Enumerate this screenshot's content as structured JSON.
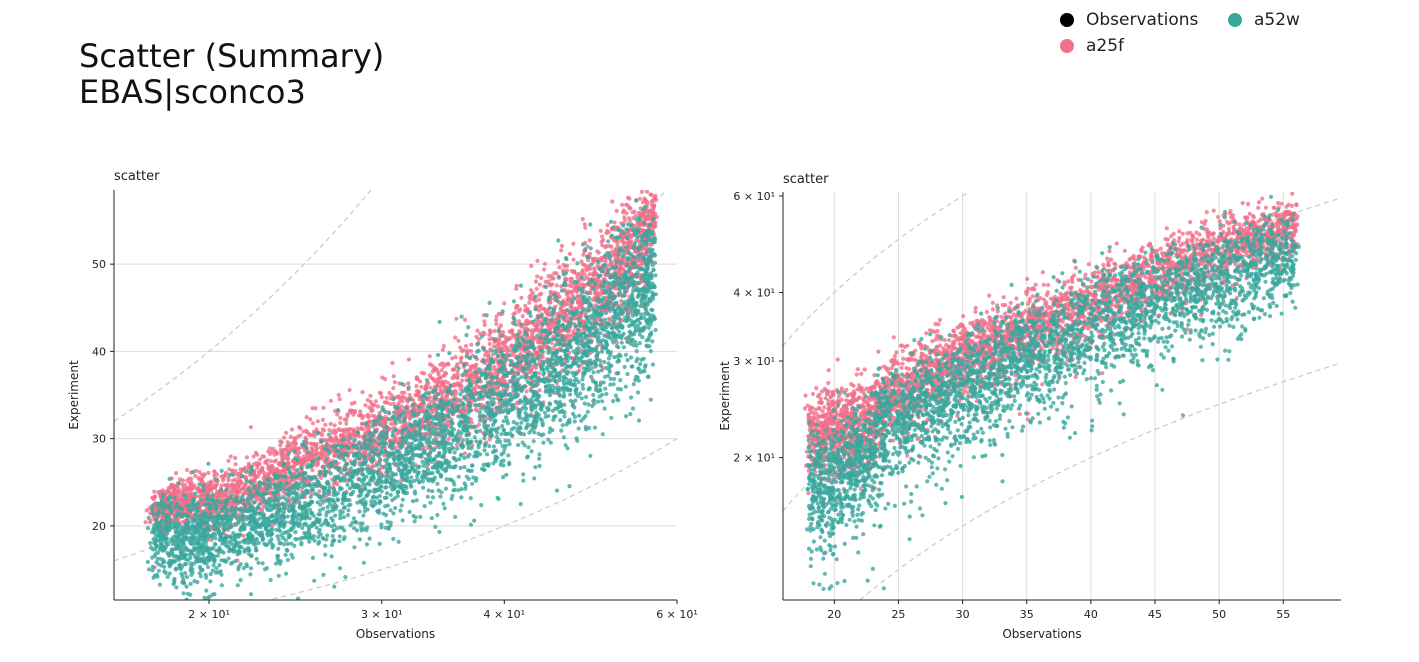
{
  "header": {
    "title_line1": "Scatter (Summary)",
    "title_line2": "EBAS|sconco3"
  },
  "legend": {
    "items": [
      {
        "label": "Observations",
        "color": "#000000"
      },
      {
        "label": "a52w",
        "color": "#3aa79e"
      },
      {
        "label": "a25f",
        "color": "#f0718a"
      }
    ]
  },
  "chart_data": [
    {
      "type": "scatter",
      "title": "scatter",
      "xlabel": "Observations",
      "ylabel": "Experiment",
      "xscale": "log",
      "yscale": "linear",
      "xlim": [
        16,
        60
      ],
      "ylim": [
        11.5,
        58.5
      ],
      "xticks": [
        {
          "value": 20,
          "label": "2 × 10¹"
        },
        {
          "value": 30,
          "label": "3 × 10¹"
        },
        {
          "value": 40,
          "label": "4 × 10¹"
        },
        {
          "value": 60,
          "label": "6 × 10¹"
        }
      ],
      "yticks": [
        {
          "value": 20,
          "label": "20"
        },
        {
          "value": 30,
          "label": "30"
        },
        {
          "value": 40,
          "label": "40"
        },
        {
          "value": 50,
          "label": "50"
        }
      ],
      "grid": "horizontal",
      "reference_lines": [
        "1:2",
        "1:1",
        "2:1"
      ],
      "series": [
        {
          "name": "a25f",
          "color": "#f0718a",
          "x": [
            17.5,
            18.5,
            19.5,
            20.5,
            22,
            23.5,
            25,
            27,
            29,
            31,
            33,
            35,
            37.5,
            40,
            42.5,
            45,
            47.5,
            50,
            52.5,
            55,
            57
          ],
          "y": [
            21.5,
            22.5,
            22.8,
            22.5,
            24,
            26,
            27.5,
            29,
            30,
            31.5,
            33,
            34.5,
            36.5,
            38.5,
            41,
            43,
            45,
            47,
            49.5,
            52,
            55
          ],
          "spread": [
            1.5,
            1.5,
            1.5,
            1.8,
            2,
            2,
            2,
            2.3,
            2.5,
            2.5,
            2.5,
            2.8,
            3,
            3,
            3,
            3,
            3.2,
            3.5,
            3.5,
            3,
            2
          ]
        },
        {
          "name": "a52w",
          "color": "#3aa79e",
          "x": [
            17.5,
            18.5,
            19.5,
            20.5,
            22,
            23.5,
            25,
            27,
            29,
            31,
            33,
            35,
            37.5,
            40,
            42.5,
            45,
            47.5,
            50,
            52.5,
            55,
            57
          ],
          "y": [
            19,
            18.5,
            18.5,
            19,
            20,
            21.5,
            22.5,
            24,
            25.5,
            27,
            28.5,
            30,
            32,
            34,
            36,
            38,
            40,
            42.5,
            44.5,
            46.5,
            48
          ],
          "spread": [
            2.5,
            2.5,
            2.5,
            2.5,
            2.8,
            3,
            3,
            3.2,
            3.5,
            3.5,
            3.5,
            3.8,
            4,
            4,
            4.2,
            4.5,
            4.5,
            4.8,
            5,
            5,
            4
          ]
        }
      ]
    },
    {
      "type": "scatter",
      "title": "scatter",
      "xlabel": "Observations",
      "ylabel": "Experiment",
      "xscale": "linear",
      "yscale": "log",
      "xlim": [
        16,
        59.5
      ],
      "ylim": [
        11,
        61
      ],
      "xticks": [
        {
          "value": 20,
          "label": "20"
        },
        {
          "value": 25,
          "label": "25"
        },
        {
          "value": 30,
          "label": "30"
        },
        {
          "value": 35,
          "label": "35"
        },
        {
          "value": 40,
          "label": "40"
        },
        {
          "value": 45,
          "label": "45"
        },
        {
          "value": 50,
          "label": "50"
        },
        {
          "value": 55,
          "label": "55"
        }
      ],
      "yticks": [
        {
          "value": 20,
          "label": "2 × 10¹"
        },
        {
          "value": 30,
          "label": "3 × 10¹"
        },
        {
          "value": 40,
          "label": "4 × 10¹"
        },
        {
          "value": 60,
          "label": "6 × 10¹"
        }
      ],
      "grid": "vertical",
      "reference_lines": [
        "1:2",
        "1:1",
        "2:1"
      ],
      "series": [
        {
          "name": "a25f",
          "color": "#f0718a",
          "x": [
            18,
            19.5,
            21,
            22.5,
            24,
            26,
            28,
            30,
            32,
            34,
            36,
            38.5,
            41,
            43.5,
            46,
            48.5,
            51,
            53.5,
            56
          ],
          "y": [
            21.5,
            22.5,
            22.5,
            23,
            25.5,
            27,
            29,
            30.5,
            32,
            33.5,
            35,
            37,
            39,
            41.5,
            43.5,
            46,
            48.5,
            51,
            53
          ],
          "spread": [
            1.8,
            2,
            2,
            2.2,
            2.2,
            2.4,
            2.5,
            2.5,
            2.5,
            2.7,
            2.8,
            3,
            3,
            3,
            3.2,
            3.5,
            3.5,
            3.2,
            2.8
          ]
        },
        {
          "name": "a52w",
          "color": "#3aa79e",
          "x": [
            18,
            19.5,
            21,
            22.5,
            24,
            26,
            28,
            30,
            32,
            34,
            36,
            38.5,
            41,
            43.5,
            46,
            48.5,
            51,
            53.5,
            56
          ],
          "y": [
            18,
            17.5,
            18.5,
            20,
            22,
            23.5,
            25,
            26.5,
            28,
            29.5,
            31,
            33,
            35,
            37,
            39,
            41,
            43,
            45,
            46.5
          ],
          "spread": [
            2.5,
            2.5,
            2.5,
            2.8,
            3,
            3,
            3.2,
            3.5,
            3.5,
            3.5,
            3.8,
            4,
            4,
            4.2,
            4.5,
            4.5,
            4.8,
            5,
            4
          ]
        }
      ]
    }
  ]
}
